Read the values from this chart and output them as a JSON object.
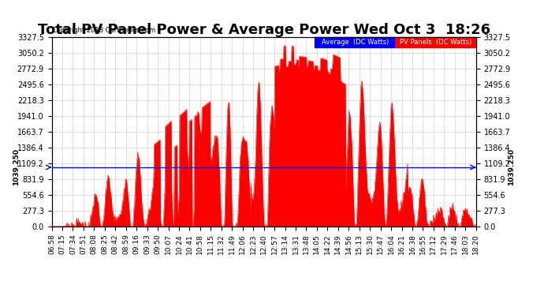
{
  "title": "Total PV Panel Power & Average Power Wed Oct 3  18:26",
  "copyright": "Copyright 2018 Cartronics.com",
  "avg_label": "Average  (DC Watts)",
  "pv_label": "PV Panels  (DC Watts)",
  "avg_value": 1039.25,
  "ymin": 0.0,
  "ymax": 3327.5,
  "yticks": [
    0.0,
    277.3,
    554.6,
    831.9,
    1109.2,
    1386.4,
    1663.7,
    1941.0,
    2218.3,
    2495.6,
    2772.9,
    3050.2,
    3327.5
  ],
  "bg_color": "#ffffff",
  "grid_color": "#b0b0b0",
  "fill_color": "#ff0000",
  "avg_line_color": "#0000ff",
  "title_fontsize": 13,
  "tick_fontsize": 7,
  "xtick_labels": [
    "06:58",
    "07:15",
    "07:34",
    "07:51",
    "08:08",
    "08:25",
    "08:42",
    "08:59",
    "09:16",
    "09:33",
    "09:50",
    "10:07",
    "10:24",
    "10:41",
    "10:58",
    "11:15",
    "11:32",
    "11:49",
    "12:06",
    "12:23",
    "12:40",
    "12:57",
    "13:14",
    "13:31",
    "13:48",
    "14:05",
    "14:22",
    "14:39",
    "14:56",
    "15:13",
    "15:30",
    "15:47",
    "16:04",
    "16:21",
    "16:38",
    "16:55",
    "17:12",
    "17:29",
    "17:46",
    "18:03",
    "18:20"
  ]
}
